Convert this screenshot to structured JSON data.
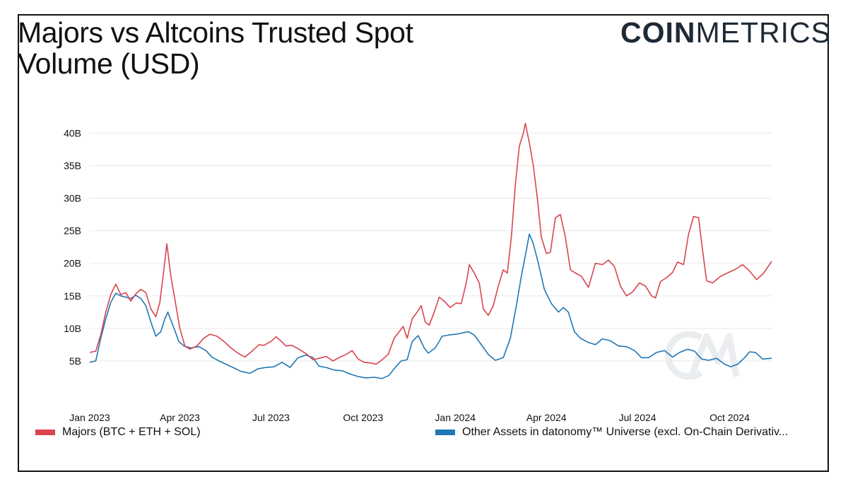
{
  "header": {
    "title_line1": "Majors vs Altcoins Trusted Spot",
    "title_line2": "Volume (USD)",
    "brand_bold": "COIN",
    "brand_light": "METRICS"
  },
  "colors": {
    "majors": "#d9444f",
    "others": "#1f77b4",
    "grid": "#e8e8e8",
    "axis_text": "#111111"
  },
  "chart_data": {
    "type": "line",
    "title": "Majors vs Altcoins Trusted Spot Volume (USD)",
    "xlabel": "",
    "ylabel": "",
    "x_range": [
      "2023-01-01",
      "2024-11-12"
    ],
    "ylim": [
      0,
      42
    ],
    "y_unit": "B",
    "y_ticks": [
      5,
      10,
      15,
      20,
      25,
      30,
      35,
      40
    ],
    "y_tick_labels": [
      "5B",
      "10B",
      "15B",
      "20B",
      "25B",
      "30B",
      "35B",
      "40B"
    ],
    "x_ticks": [
      "2023-01-01",
      "2023-04-01",
      "2023-07-01",
      "2023-10-01",
      "2024-01-01",
      "2024-04-01",
      "2024-07-01",
      "2024-10-01"
    ],
    "x_tick_labels": [
      "Jan 2023",
      "Apr 2023",
      "Jul 2023",
      "Oct 2023",
      "Jan 2024",
      "Apr 2024",
      "Jul 2024",
      "Oct 2024"
    ],
    "grid": true,
    "legend_position": "bottom",
    "series": [
      {
        "name": "Majors (BTC + ETH + SOL)",
        "points": [
          [
            "2023-01-01",
            6.3
          ],
          [
            "2023-01-07",
            6.5
          ],
          [
            "2023-01-12",
            9.0
          ],
          [
            "2023-01-17",
            12.5
          ],
          [
            "2023-01-22",
            15.2
          ],
          [
            "2023-01-27",
            16.8
          ],
          [
            "2023-02-01",
            15.2
          ],
          [
            "2023-02-06",
            15.5
          ],
          [
            "2023-02-11",
            14.2
          ],
          [
            "2023-02-16",
            15.3
          ],
          [
            "2023-02-21",
            16.0
          ],
          [
            "2023-02-26",
            15.5
          ],
          [
            "2023-03-03",
            13.0
          ],
          [
            "2023-03-08",
            11.8
          ],
          [
            "2023-03-12",
            14.0
          ],
          [
            "2023-03-16",
            19.0
          ],
          [
            "2023-03-19",
            23.0
          ],
          [
            "2023-03-23",
            18.0
          ],
          [
            "2023-03-27",
            14.5
          ],
          [
            "2023-04-01",
            10.0
          ],
          [
            "2023-04-06",
            7.3
          ],
          [
            "2023-04-11",
            6.8
          ],
          [
            "2023-04-18",
            7.3
          ],
          [
            "2023-04-25",
            8.5
          ],
          [
            "2023-05-01",
            9.1
          ],
          [
            "2023-05-08",
            8.8
          ],
          [
            "2023-05-15",
            8.0
          ],
          [
            "2023-05-22",
            7.0
          ],
          [
            "2023-05-29",
            6.2
          ],
          [
            "2023-06-05",
            5.6
          ],
          [
            "2023-06-12",
            6.5
          ],
          [
            "2023-06-19",
            7.5
          ],
          [
            "2023-06-24",
            7.4
          ],
          [
            "2023-07-01",
            8.0
          ],
          [
            "2023-07-06",
            8.7
          ],
          [
            "2023-07-10",
            8.2
          ],
          [
            "2023-07-16",
            7.3
          ],
          [
            "2023-07-22",
            7.4
          ],
          [
            "2023-07-29",
            6.8
          ],
          [
            "2023-08-06",
            6.0
          ],
          [
            "2023-08-12",
            5.2
          ],
          [
            "2023-08-18",
            5.4
          ],
          [
            "2023-08-25",
            5.7
          ],
          [
            "2023-09-01",
            5.0
          ],
          [
            "2023-09-08",
            5.6
          ],
          [
            "2023-09-14",
            6.0
          ],
          [
            "2023-09-20",
            6.6
          ],
          [
            "2023-09-26",
            5.3
          ],
          [
            "2023-10-02",
            4.8
          ],
          [
            "2023-10-08",
            4.7
          ],
          [
            "2023-10-14",
            4.5
          ],
          [
            "2023-10-20",
            5.2
          ],
          [
            "2023-10-26",
            6.0
          ],
          [
            "2023-11-01",
            8.5
          ],
          [
            "2023-11-06",
            9.5
          ],
          [
            "2023-11-10",
            10.3
          ],
          [
            "2023-11-14",
            8.5
          ],
          [
            "2023-11-19",
            11.5
          ],
          [
            "2023-11-24",
            12.5
          ],
          [
            "2023-11-28",
            13.5
          ],
          [
            "2023-12-02",
            11.0
          ],
          [
            "2023-12-06",
            10.5
          ],
          [
            "2023-12-11",
            12.5
          ],
          [
            "2023-12-16",
            14.8
          ],
          [
            "2023-12-21",
            14.2
          ],
          [
            "2023-12-27",
            13.2
          ],
          [
            "2024-01-02",
            13.9
          ],
          [
            "2024-01-07",
            13.8
          ],
          [
            "2024-01-12",
            17.0
          ],
          [
            "2024-01-15",
            19.8
          ],
          [
            "2024-01-20",
            18.5
          ],
          [
            "2024-01-25",
            17.0
          ],
          [
            "2024-01-29",
            13.0
          ],
          [
            "2024-02-03",
            12.0
          ],
          [
            "2024-02-08",
            13.5
          ],
          [
            "2024-02-13",
            16.5
          ],
          [
            "2024-02-18",
            19.0
          ],
          [
            "2024-02-22",
            18.5
          ],
          [
            "2024-02-26",
            24.0
          ],
          [
            "2024-03-01",
            32.0
          ],
          [
            "2024-03-05",
            38.0
          ],
          [
            "2024-03-09",
            40.0
          ],
          [
            "2024-03-11",
            41.5
          ],
          [
            "2024-03-15",
            38.5
          ],
          [
            "2024-03-19",
            35.0
          ],
          [
            "2024-03-23",
            30.0
          ],
          [
            "2024-03-27",
            24.0
          ],
          [
            "2024-04-01",
            21.5
          ],
          [
            "2024-04-05",
            21.7
          ],
          [
            "2024-04-10",
            27.0
          ],
          [
            "2024-04-15",
            27.5
          ],
          [
            "2024-04-20",
            24.0
          ],
          [
            "2024-04-25",
            19.0
          ],
          [
            "2024-04-30",
            18.5
          ],
          [
            "2024-05-06",
            18.0
          ],
          [
            "2024-05-13",
            16.3
          ],
          [
            "2024-05-20",
            20.0
          ],
          [
            "2024-05-27",
            19.8
          ],
          [
            "2024-06-02",
            20.5
          ],
          [
            "2024-06-08",
            19.5
          ],
          [
            "2024-06-14",
            16.5
          ],
          [
            "2024-06-20",
            15.0
          ],
          [
            "2024-06-26",
            15.6
          ],
          [
            "2024-07-03",
            17.0
          ],
          [
            "2024-07-09",
            16.5
          ],
          [
            "2024-07-15",
            15.0
          ],
          [
            "2024-07-19",
            14.7
          ],
          [
            "2024-07-24",
            17.2
          ],
          [
            "2024-07-30",
            17.8
          ],
          [
            "2024-08-05",
            18.6
          ],
          [
            "2024-08-10",
            20.2
          ],
          [
            "2024-08-16",
            19.8
          ],
          [
            "2024-08-21",
            24.5
          ],
          [
            "2024-08-26",
            27.2
          ],
          [
            "2024-08-31",
            27.0
          ],
          [
            "2024-09-04",
            22.0
          ],
          [
            "2024-09-08",
            17.3
          ],
          [
            "2024-09-14",
            17.0
          ],
          [
            "2024-09-22",
            18.0
          ],
          [
            "2024-09-30",
            18.6
          ],
          [
            "2024-10-07",
            19.1
          ],
          [
            "2024-10-14",
            19.8
          ],
          [
            "2024-10-21",
            18.8
          ],
          [
            "2024-10-28",
            17.5
          ],
          [
            "2024-11-04",
            18.5
          ],
          [
            "2024-11-12",
            20.3
          ]
        ]
      },
      {
        "name": "Other Assets in datonomy™ Universe (excl. On-Chain Derivativ...",
        "points": [
          [
            "2023-01-01",
            4.8
          ],
          [
            "2023-01-07",
            5.0
          ],
          [
            "2023-01-12",
            8.5
          ],
          [
            "2023-01-17",
            11.5
          ],
          [
            "2023-01-22",
            14.0
          ],
          [
            "2023-01-27",
            15.4
          ],
          [
            "2023-02-01",
            15.0
          ],
          [
            "2023-02-06",
            14.8
          ],
          [
            "2023-02-11",
            14.6
          ],
          [
            "2023-02-16",
            15.1
          ],
          [
            "2023-02-21",
            14.6
          ],
          [
            "2023-02-26",
            13.5
          ],
          [
            "2023-03-03",
            11.0
          ],
          [
            "2023-03-08",
            8.8
          ],
          [
            "2023-03-13",
            9.5
          ],
          [
            "2023-03-17",
            11.5
          ],
          [
            "2023-03-20",
            12.5
          ],
          [
            "2023-03-25",
            10.5
          ],
          [
            "2023-03-31",
            8.0
          ],
          [
            "2023-04-05",
            7.3
          ],
          [
            "2023-04-12",
            7.0
          ],
          [
            "2023-04-20",
            7.2
          ],
          [
            "2023-04-27",
            6.6
          ],
          [
            "2023-05-03",
            5.6
          ],
          [
            "2023-05-10",
            5.0
          ],
          [
            "2023-05-17",
            4.5
          ],
          [
            "2023-05-24",
            4.0
          ],
          [
            "2023-06-01",
            3.4
          ],
          [
            "2023-06-10",
            3.1
          ],
          [
            "2023-06-18",
            3.8
          ],
          [
            "2023-06-26",
            4.0
          ],
          [
            "2023-07-04",
            4.1
          ],
          [
            "2023-07-12",
            4.8
          ],
          [
            "2023-07-20",
            4.0
          ],
          [
            "2023-07-28",
            5.5
          ],
          [
            "2023-08-05",
            5.9
          ],
          [
            "2023-08-12",
            5.5
          ],
          [
            "2023-08-18",
            4.2
          ],
          [
            "2023-08-25",
            4.0
          ],
          [
            "2023-09-02",
            3.6
          ],
          [
            "2023-09-10",
            3.5
          ],
          [
            "2023-09-18",
            3.0
          ],
          [
            "2023-09-26",
            2.6
          ],
          [
            "2023-10-04",
            2.4
          ],
          [
            "2023-10-12",
            2.5
          ],
          [
            "2023-10-20",
            2.3
          ],
          [
            "2023-10-27",
            2.8
          ],
          [
            "2023-11-02",
            4.0
          ],
          [
            "2023-11-08",
            5.0
          ],
          [
            "2023-11-14",
            5.2
          ],
          [
            "2023-11-19",
            8.0
          ],
          [
            "2023-11-25",
            8.9
          ],
          [
            "2023-12-01",
            7.0
          ],
          [
            "2023-12-05",
            6.2
          ],
          [
            "2023-12-12",
            7.0
          ],
          [
            "2023-12-19",
            8.8
          ],
          [
            "2023-12-26",
            9.0
          ],
          [
            "2024-01-02",
            9.1
          ],
          [
            "2024-01-08",
            9.3
          ],
          [
            "2024-01-14",
            9.5
          ],
          [
            "2024-01-20",
            9.0
          ],
          [
            "2024-01-27",
            7.5
          ],
          [
            "2024-02-03",
            6.0
          ],
          [
            "2024-02-10",
            5.1
          ],
          [
            "2024-02-18",
            5.5
          ],
          [
            "2024-02-25",
            8.5
          ],
          [
            "2024-03-02",
            13.5
          ],
          [
            "2024-03-07",
            18.0
          ],
          [
            "2024-03-12",
            22.0
          ],
          [
            "2024-03-15",
            24.5
          ],
          [
            "2024-03-19",
            23.0
          ],
          [
            "2024-03-24",
            20.0
          ],
          [
            "2024-03-30",
            16.0
          ],
          [
            "2024-04-06",
            13.8
          ],
          [
            "2024-04-13",
            12.5
          ],
          [
            "2024-04-18",
            13.2
          ],
          [
            "2024-04-23",
            12.5
          ],
          [
            "2024-04-29",
            9.5
          ],
          [
            "2024-05-05",
            8.5
          ],
          [
            "2024-05-12",
            7.9
          ],
          [
            "2024-05-20",
            7.5
          ],
          [
            "2024-05-27",
            8.4
          ],
          [
            "2024-06-04",
            8.1
          ],
          [
            "2024-06-12",
            7.3
          ],
          [
            "2024-06-20",
            7.2
          ],
          [
            "2024-06-28",
            6.6
          ],
          [
            "2024-07-05",
            5.5
          ],
          [
            "2024-07-12",
            5.5
          ],
          [
            "2024-07-20",
            6.3
          ],
          [
            "2024-07-28",
            6.6
          ],
          [
            "2024-08-05",
            5.6
          ],
          [
            "2024-08-12",
            6.3
          ],
          [
            "2024-08-20",
            6.8
          ],
          [
            "2024-08-27",
            6.5
          ],
          [
            "2024-09-03",
            5.3
          ],
          [
            "2024-09-10",
            5.1
          ],
          [
            "2024-09-18",
            5.4
          ],
          [
            "2024-09-26",
            4.5
          ],
          [
            "2024-10-02",
            4.1
          ],
          [
            "2024-10-09",
            4.5
          ],
          [
            "2024-10-16",
            5.5
          ],
          [
            "2024-10-21",
            6.4
          ],
          [
            "2024-10-27",
            6.3
          ],
          [
            "2024-11-03",
            5.3
          ],
          [
            "2024-11-12",
            5.4
          ]
        ]
      }
    ]
  }
}
